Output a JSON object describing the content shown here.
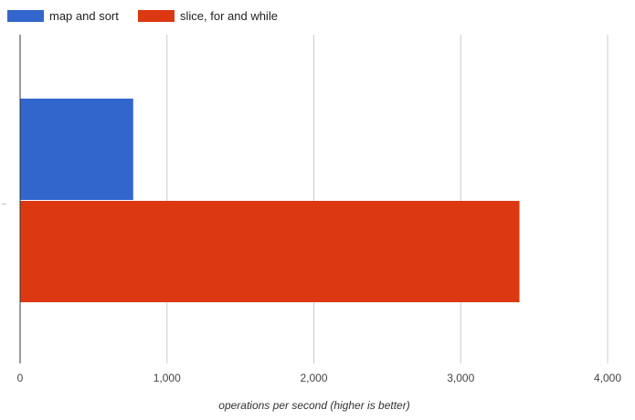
{
  "chart_data": {
    "type": "bar",
    "orientation": "horizontal",
    "categories": [
      ""
    ],
    "series": [
      {
        "name": "map and sort",
        "color": "#3366cc",
        "values": [
          770
        ]
      },
      {
        "name": "slice, for and while",
        "color": "#dc3912",
        "values": [
          3400
        ]
      }
    ],
    "xlabel": "operations per second (higher is better)",
    "ylabel": "",
    "xlim": [
      0,
      4000
    ],
    "xticks": [
      0,
      1000,
      2000,
      3000,
      4000
    ],
    "xtick_labels": [
      "0",
      "1,000",
      "2,000",
      "3,000",
      "4,000"
    ],
    "category_marker": "..",
    "grid": true,
    "legend_position": "top-left"
  }
}
